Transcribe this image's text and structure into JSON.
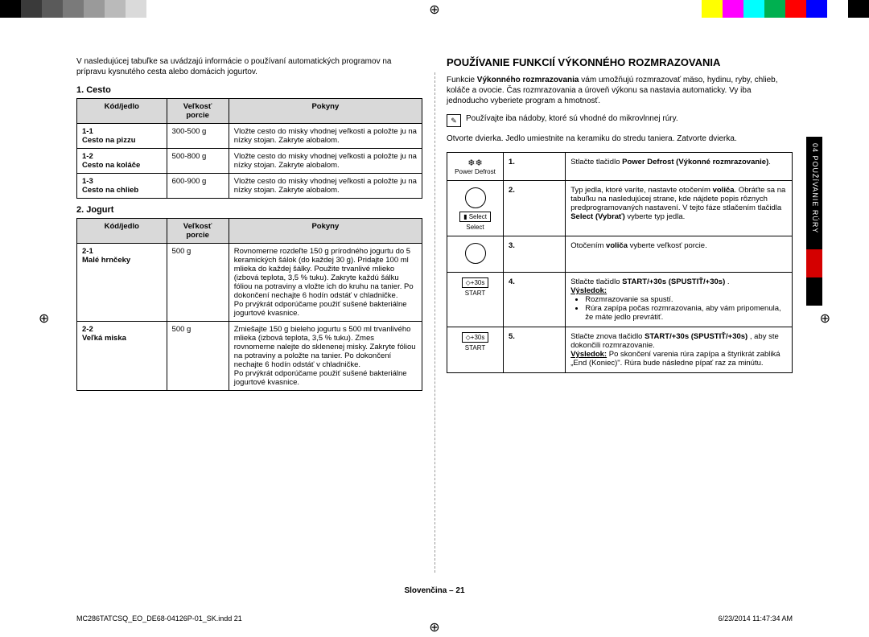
{
  "colorbar": [
    "#000",
    "#3a3a3a",
    "#5a5a5a",
    "#7a7a7a",
    "#9a9a9a",
    "#bababa",
    "#dadada",
    "#fff",
    "#000",
    "#000",
    "#fff",
    "#ffff00",
    "#ff00ff",
    "#00ffff",
    "#00b050",
    "#ff0000",
    "#0000ff",
    "#fff",
    "#000"
  ],
  "intro_left": "V nasledujúcej tabuľke sa uvádzajú informácie o používaní automatických programov na prípravu kysnutého cesta alebo domácich jogurtov.",
  "section1_title": "1. Cesto",
  "section2_title": "2. Jogurt",
  "th_code": "Kód/jedlo",
  "th_size": "Veľkosť porcie",
  "th_inst": "Pokyny",
  "cesto_rows": [
    {
      "code": "1-1",
      "name": "Cesto na pizzu",
      "size": "300-500 g",
      "inst": "Vložte cesto do misky vhodnej veľkosti a položte ju na nízky stojan. Zakryte alobalom."
    },
    {
      "code": "1-2",
      "name": "Cesto na koláče",
      "size": "500-800 g",
      "inst": "Vložte cesto do misky vhodnej veľkosti a položte ju na nízky stojan. Zakryte alobalom."
    },
    {
      "code": "1-3",
      "name": "Cesto na chlieb",
      "size": "600-900 g",
      "inst": "Vložte cesto do misky vhodnej veľkosti a položte ju na nízky stojan. Zakryte alobalom."
    }
  ],
  "jogurt_rows": [
    {
      "code": "2-1",
      "name": "Malé hrnčeky",
      "size": "500 g",
      "inst": "Rovnomerne rozdeľte 150 g prírodného jogurtu do 5 keramických šálok (do každej 30 g). Pridajte 100 ml mlieka do každej šálky. Použite trvanlivé mlieko (izbová teplota, 3,5 % tuku). Zakryte každú šálku fóliou na potraviny a vložte ich do kruhu na tanier. Po dokončení nechajte 6 hodín odstáť v chladničke.\nPo prvýkrát odporúčame použiť sušené bakteriálne jogurtové kvasnice."
    },
    {
      "code": "2-2",
      "name": "Veľká miska",
      "size": "500 g",
      "inst": "Zmiešajte 150 g bieleho jogurtu s 500 ml trvanlivého mlieka (izbová teplota, 3,5 % tuku). Zmes rovnomerne nalejte do sklenenej misky. Zakryte fóliou na potraviny a položte na tanier. Po dokončení nechajte 6 hodín odstáť v chladničke.\nPo prvýkrát odporúčame použiť sušené bakteriálne jogurtové kvasnice."
    }
  ],
  "right_heading": "POUŽÍVANIE FUNKCIÍ VÝKONNÉHO ROZMRAZOVANIA",
  "right_intro1": "Funkcie ",
  "right_intro1b": "Výkonného rozmrazovania",
  "right_intro2": " vám umožňujú rozmrazovať mäso, hydinu, ryby, chlieb, koláče a ovocie. Čas rozmrazovania a úroveň výkonu sa nastavia automaticky. Vy iba jednoducho vyberiete program a hmotnosť.",
  "note_text": "Používajte iba nádoby, ktoré sú vhodné do mikrovlnnej rúry.",
  "open_text": "Otvorte dvierka. Jedlo umiestnite na keramiku do stredu taniera. Zatvorte dvierka.",
  "steps": [
    {
      "icon": "Power Defrost",
      "icon_sym": "❄❄",
      "n": "1.",
      "text": "Stlačte tlačidlo <b>Power Defrost (Výkonné rozmrazovanie)</b>."
    },
    {
      "icon": "Select",
      "icon_sym": "◯",
      "icon_extra": "▮",
      "n": "2.",
      "text": "Typ jedla, ktoré varíte, nastavte otočením <b>voliča</b>. Obráťte sa na tabuľku na nasledujúcej strane, kde nájdete popis rôznych predprogramovaných nastavení. V tejto fáze stlačením tlačidla <b>Select (Vybrať)</b> vyberte typ jedla."
    },
    {
      "icon": "",
      "icon_sym": "◯",
      "n": "3.",
      "text": "Otočením <b>voliča</b> vyberte veľkosť porcie."
    },
    {
      "icon": "START",
      "icon_sym": "◇+30s",
      "n": "4.",
      "text": "Stlačte tlačidlo <b>START/+30s (SPUSTIŤ/+30s)</b> .<br><span class='und'><b>Výsledok:</b></span><ul class='b'><li>Rozmrazovanie sa spustí.</li><li>Rúra zapípa počas rozmrazovania, aby vám pripomenula, že máte jedlo prevrátiť.</li></ul>"
    },
    {
      "icon": "START",
      "icon_sym": "◇+30s",
      "n": "5.",
      "text": "Stlačte znova tlačidlo <b>START/+30s (SPUSTIŤ/+30s)</b> , aby ste dokončili rozmrazovanie.<br><span class='und'><b>Výsledok:</b></span> Po skončení varenia rúra zapípa a štyrikrát zabliká „End (Koniec)\". Rúra bude následne pípať raz za minútu."
    }
  ],
  "side_label": "04  POUŽÍVANIE RÚRY",
  "footer_center": "Slovenčina – 21",
  "footer_left": "MC286TATCSQ_EO_DE68-04126P-01_SK.indd   21",
  "footer_right": "6/23/2014   11:47:34 AM"
}
